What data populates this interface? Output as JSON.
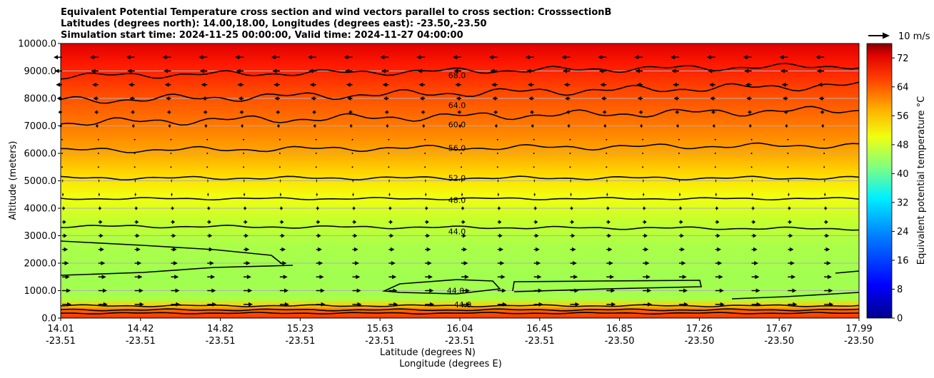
{
  "chart_data": {
    "type": "contour",
    "title": [
      "Equivalent Potential Temperature cross section and wind vectors parallel to cross section: CrosssectionB",
      "Latitudes (degrees north): 14.00,18.00, Longitudes (degrees east): -23.50,-23.50",
      "Simulation start time: 2024-11-25 00:00:00, Valid time: 2024-11-27 04:00:00"
    ],
    "xlabel": [
      "Latitude (degrees N)",
      "Longitude (degrees E)"
    ],
    "ylabel": "Altitude (meters)",
    "ylim": [
      0,
      10000
    ],
    "yticks": [
      "0.0",
      "1000.0",
      "2000.0",
      "3000.0",
      "4000.0",
      "5000.0",
      "6000.0",
      "7000.0",
      "8000.0",
      "9000.0",
      "10000.0"
    ],
    "xticks": [
      {
        "lat": "14.01",
        "lon": "-23.51"
      },
      {
        "lat": "14.42",
        "lon": "-23.51"
      },
      {
        "lat": "14.82",
        "lon": "-23.51"
      },
      {
        "lat": "15.23",
        "lon": "-23.51"
      },
      {
        "lat": "15.63",
        "lon": "-23.51"
      },
      {
        "lat": "16.04",
        "lon": "-23.51"
      },
      {
        "lat": "16.45",
        "lon": "-23.51"
      },
      {
        "lat": "16.85",
        "lon": "-23.50"
      },
      {
        "lat": "17.26",
        "lon": "-23.50"
      },
      {
        "lat": "17.67",
        "lon": "-23.50"
      },
      {
        "lat": "17.99",
        "lon": "-23.50"
      }
    ],
    "colorbar": {
      "label": "Equivalent potential temperature °C",
      "range": [
        0,
        76
      ],
      "ticks": [
        "0",
        "8",
        "16",
        "24",
        "32",
        "40",
        "48",
        "56",
        "64",
        "72"
      ]
    },
    "contour_labels": [
      {
        "value": "68.0",
        "altitude": 8850
      },
      {
        "value": "64.0",
        "altitude": 7750
      },
      {
        "value": "60.0",
        "altitude": 7050
      },
      {
        "value": "56.0",
        "altitude": 6200
      },
      {
        "value": "52.0",
        "altitude": 5100
      },
      {
        "value": "48.0",
        "altitude": 4300
      },
      {
        "value": "44.0",
        "altitude": 3150
      },
      {
        "value": "44.0",
        "altitude": 1000
      },
      {
        "value": "44.0",
        "altitude": 500
      }
    ],
    "quiver_key": "10 m/s",
    "grid": true
  }
}
